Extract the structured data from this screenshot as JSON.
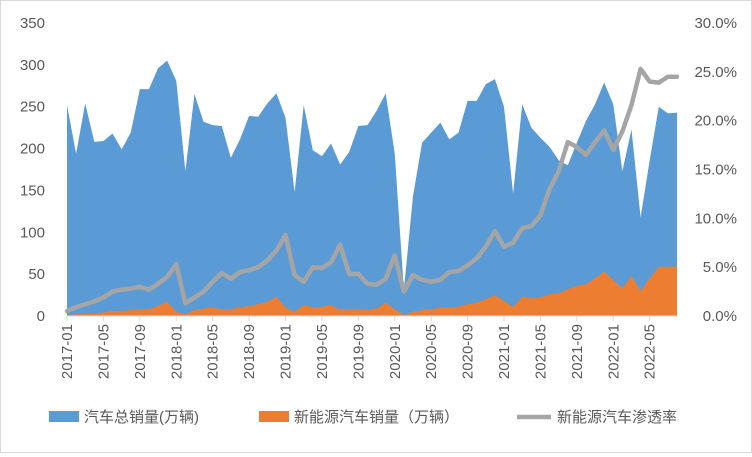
{
  "chart_data": {
    "type": "area",
    "x_ticks": [
      "2017-01",
      "2017-05",
      "2017-09",
      "2018-01",
      "2018-05",
      "2018-09",
      "2019-01",
      "2019-05",
      "2019-09",
      "2020-01",
      "2020-05",
      "2020-09",
      "2021-01",
      "2021-05",
      "2021-09",
      "2022-01",
      "2022-05"
    ],
    "y_left_ticks": [
      "0",
      "50",
      "100",
      "150",
      "200",
      "250",
      "300",
      "350"
    ],
    "y_right_ticks": [
      "0.0%",
      "5.0%",
      "10.0%",
      "15.0%",
      "20.0%",
      "25.0%",
      "30.0%"
    ],
    "ylim_left": [
      0,
      350
    ],
    "ylim_right": [
      0,
      30
    ],
    "x_months": [
      "2017-01",
      "2017-02",
      "2017-03",
      "2017-04",
      "2017-05",
      "2017-06",
      "2017-07",
      "2017-08",
      "2017-09",
      "2017-10",
      "2017-11",
      "2017-12",
      "2018-01",
      "2018-02",
      "2018-03",
      "2018-04",
      "2018-05",
      "2018-06",
      "2018-07",
      "2018-08",
      "2018-09",
      "2018-10",
      "2018-11",
      "2018-12",
      "2019-01",
      "2019-02",
      "2019-03",
      "2019-04",
      "2019-05",
      "2019-06",
      "2019-07",
      "2019-08",
      "2019-09",
      "2019-10",
      "2019-11",
      "2019-12",
      "2020-01",
      "2020-02",
      "2020-03",
      "2020-04",
      "2020-05",
      "2020-06",
      "2020-07",
      "2020-08",
      "2020-09",
      "2020-10",
      "2020-11",
      "2020-12",
      "2021-01",
      "2021-02",
      "2021-03",
      "2021-04",
      "2021-05",
      "2021-06",
      "2021-07",
      "2021-08",
      "2021-09",
      "2021-10",
      "2021-11",
      "2021-12",
      "2022-01",
      "2022-02",
      "2022-03",
      "2022-04",
      "2022-05",
      "2022-06",
      "2022-07",
      "2022-08"
    ],
    "series": [
      {
        "name": "汽车总销量(万辆)",
        "axis": "left",
        "color": "#5b9bd5",
        "values": [
          252,
          194,
          254,
          208,
          209,
          218,
          199,
          219,
          271,
          271,
          296,
          305,
          281,
          173,
          265,
          232,
          228,
          227,
          189,
          211,
          239,
          238,
          254,
          266,
          237,
          148,
          252,
          198,
          191,
          206,
          181,
          196,
          227,
          228,
          245,
          266,
          194,
          31,
          143,
          207,
          219,
          231,
          211,
          219,
          257,
          257,
          277,
          283,
          250,
          146,
          253,
          225,
          213,
          202,
          186,
          180,
          207,
          233,
          253,
          279,
          253,
          173,
          223,
          118,
          186,
          250,
          242,
          243
        ]
      },
      {
        "name": "新能源汽车销量（万辆）",
        "axis": "left",
        "color": "#ed7d31",
        "values": [
          1,
          2,
          3,
          3,
          4,
          6,
          6,
          7,
          8,
          8,
          12,
          17,
          5,
          2,
          7,
          9,
          10,
          8,
          8,
          10,
          12,
          14,
          17,
          23,
          10,
          5,
          13,
          10,
          11,
          13,
          8,
          8,
          8,
          7,
          9,
          16,
          8,
          1,
          5,
          7,
          8,
          10,
          10,
          11,
          14,
          16,
          20,
          25,
          18,
          11,
          23,
          21,
          22,
          26,
          27,
          32,
          36,
          38,
          45,
          53,
          43,
          33,
          48,
          30,
          45,
          59,
          59,
          59
        ]
      },
      {
        "name": "新能源汽车渗透率",
        "axis": "right",
        "color": "#a5a5a5",
        "values": [
          0.5,
          0.9,
          1.2,
          1.5,
          1.9,
          2.5,
          2.7,
          2.8,
          3.0,
          2.7,
          3.3,
          4.0,
          5.3,
          1.3,
          1.9,
          2.5,
          3.5,
          4.4,
          3.8,
          4.5,
          4.7,
          5.0,
          5.7,
          6.7,
          8.3,
          4.2,
          3.5,
          5.0,
          4.9,
          5.5,
          7.3,
          4.3,
          4.3,
          3.3,
          3.2,
          3.8,
          6.2,
          2.5,
          4.2,
          3.7,
          3.5,
          3.7,
          4.5,
          4.6,
          5.2,
          5.9,
          7.1,
          8.7,
          7.1,
          7.5,
          9.0,
          9.2,
          10.3,
          13.0,
          14.8,
          17.8,
          17.3,
          16.5,
          17.8,
          19.0,
          17.0,
          18.9,
          21.6,
          25.3,
          24.0,
          23.9,
          24.5,
          24.5
        ]
      }
    ]
  }
}
